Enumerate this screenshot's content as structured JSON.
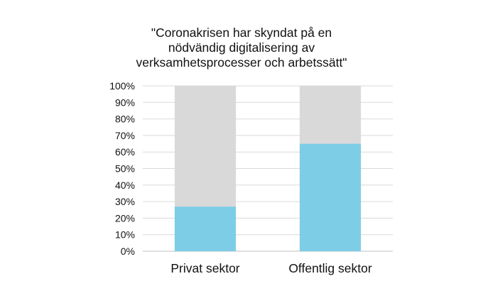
{
  "chart_data": {
    "type": "bar",
    "stacked": true,
    "title_lines": [
      "\"Coronakrisen har skyndat på en",
      "nödvändig digitalisering av",
      "verksamhetsprocesser och arbetssätt\""
    ],
    "categories": [
      "Privat sektor",
      "Offentlig sektor"
    ],
    "series": [
      {
        "values": [
          27,
          65
        ],
        "color": "#7ecde6"
      },
      {
        "values": [
          73,
          35
        ],
        "color": "#d9d9d9"
      }
    ],
    "y_ticks": [
      "0%",
      "10%",
      "20%",
      "30%",
      "40%",
      "50%",
      "60%",
      "70%",
      "80%",
      "90%",
      "100%"
    ],
    "ylim": [
      0,
      100
    ],
    "grid": true,
    "legend": "none",
    "colors": {
      "gridline": "#d9d9d9",
      "axis": "#bfbfbf"
    }
  }
}
